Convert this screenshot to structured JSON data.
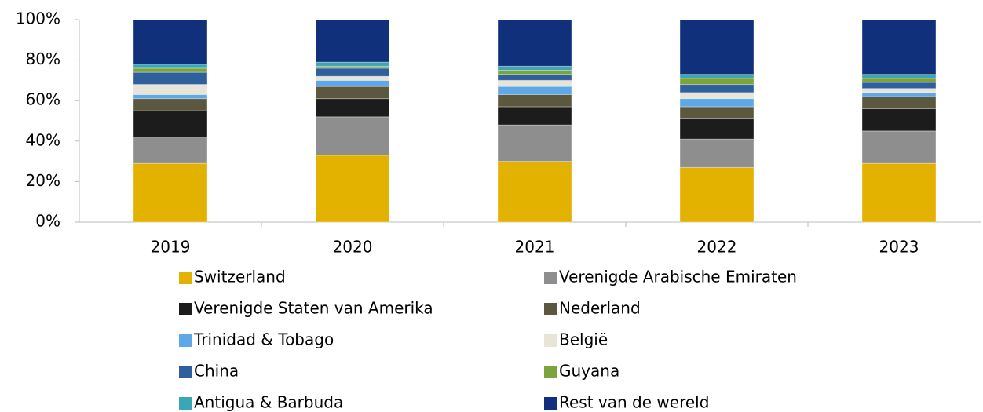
{
  "chart_data": {
    "type": "stacked_bar",
    "categories": [
      "2019",
      "2020",
      "2021",
      "2022",
      "2023"
    ],
    "series": [
      {
        "name": "Switzerland",
        "color": "#e3b100",
        "values": [
          29,
          33,
          30,
          27,
          29
        ]
      },
      {
        "name": "Verenigde Arabische Emiraten",
        "color": "#8e8e8e",
        "values": [
          13,
          19,
          18,
          14,
          16
        ]
      },
      {
        "name": "Verenigde Staten van Amerika",
        "color": "#1c1c1c",
        "values": [
          13,
          9,
          9,
          10,
          11
        ]
      },
      {
        "name": "Nederland",
        "color": "#5c5840",
        "values": [
          6,
          6,
          6,
          6,
          6
        ]
      },
      {
        "name": "Trinidad & Tobago",
        "color": "#5ea8e8",
        "values": [
          2,
          3,
          4,
          4,
          2
        ]
      },
      {
        "name": "België",
        "color": "#e8e4d8",
        "values": [
          5,
          2,
          3,
          3,
          2
        ]
      },
      {
        "name": "China",
        "color": "#2f5f9c",
        "values": [
          6,
          4,
          3,
          4,
          3
        ]
      },
      {
        "name": "Guyana",
        "color": "#7ca43e",
        "values": [
          2,
          1,
          2,
          3,
          2
        ]
      },
      {
        "name": "Antigua & Barbuda",
        "color": "#3aa6b6",
        "values": [
          2,
          2,
          2,
          2,
          2
        ]
      },
      {
        "name": "Rest van de wereld",
        "color": "#10307c",
        "values": [
          22,
          21,
          23,
          27,
          27
        ]
      }
    ],
    "ylim": [
      0,
      100
    ],
    "yticks": [
      {
        "value": 0,
        "label": "0%"
      },
      {
        "value": 20,
        "label": "20%"
      },
      {
        "value": 40,
        "label": "40%"
      },
      {
        "value": 60,
        "label": "60%"
      },
      {
        "value": 80,
        "label": "80%"
      },
      {
        "value": 100,
        "label": "100%"
      }
    ],
    "legend": "bottom"
  }
}
